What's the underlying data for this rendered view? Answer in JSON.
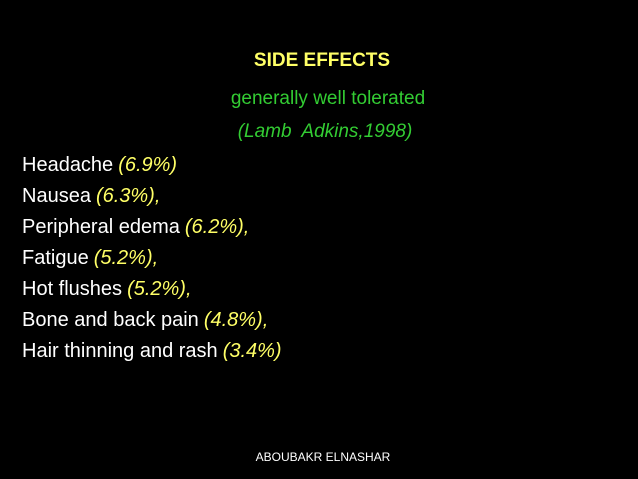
{
  "title": "SIDE EFFECTS",
  "subtitle": "generally well tolerated",
  "citation": "(Lamb  Adkins,1998)",
  "items": [
    {
      "name": "Headache",
      "rate": "(6.9%)"
    },
    {
      "name": "Nausea",
      "rate": "(6.3%),"
    },
    {
      "name": "Peripheral edema",
      "rate": "(6.2%),"
    },
    {
      "name": "Fatigue",
      "rate": "(5.2%),"
    },
    {
      "name": "Hot flushes",
      "rate": "(5.2%),"
    },
    {
      "name": "Bone and back pain",
      "rate": "(4.8%),"
    },
    {
      "name": "Hair thinning and rash",
      "rate": "(3.4%)"
    }
  ],
  "footer": "ABOUBAKR ELNASHAR"
}
